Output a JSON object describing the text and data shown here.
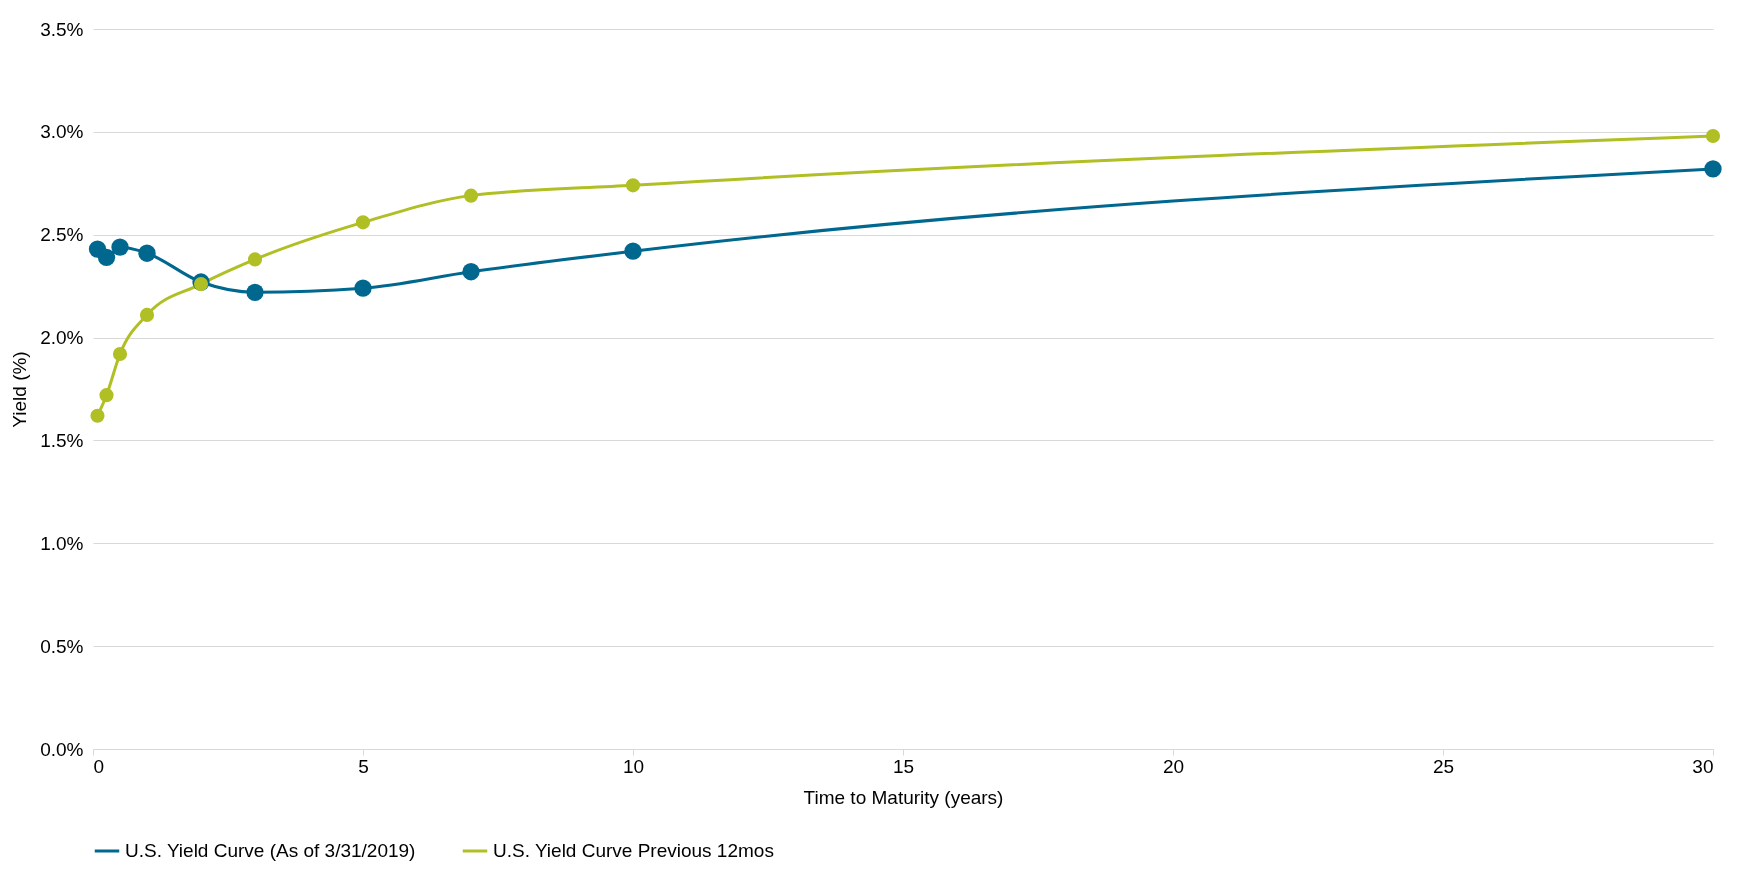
{
  "chart_data": {
    "type": "line",
    "xlabel": "Time to Maturity (years)",
    "ylabel": "Yield (%)",
    "x": [
      0.083,
      0.25,
      0.5,
      1,
      2,
      3,
      5,
      7,
      10,
      30
    ],
    "series": [
      {
        "name": "U.S. Yield Curve (As of 3/31/2019)",
        "color": "#00678f",
        "values": [
          2.43,
          2.39,
          2.44,
          2.41,
          2.27,
          2.22,
          2.24,
          2.32,
          2.42,
          2.82
        ]
      },
      {
        "name": "U.S. Yield Curve Previous 12mos",
        "color": "#b0bf24",
        "values": [
          1.62,
          1.72,
          1.92,
          2.11,
          2.26,
          2.38,
          2.56,
          2.69,
          2.74,
          2.98
        ]
      }
    ],
    "xlim": [
      0,
      30
    ],
    "xticks": [
      0,
      5,
      10,
      15,
      20,
      25,
      30
    ],
    "ylim": [
      0,
      3.5
    ],
    "yticks": [
      {
        "value": 0,
        "label": "0.0%"
      },
      {
        "value": 0.5,
        "label": "0.5%"
      },
      {
        "value": 1,
        "label": "1.0%"
      },
      {
        "value": 1.5,
        "label": "1.5%"
      },
      {
        "value": 2,
        "label": "2.0%"
      },
      {
        "value": 2.5,
        "label": "2.5%"
      },
      {
        "value": 3,
        "label": "3.0%"
      },
      {
        "value": 3.5,
        "label": "3.5%"
      }
    ],
    "grid": "y",
    "legend": "bottom",
    "marker": "circle",
    "line_style": "solid"
  }
}
